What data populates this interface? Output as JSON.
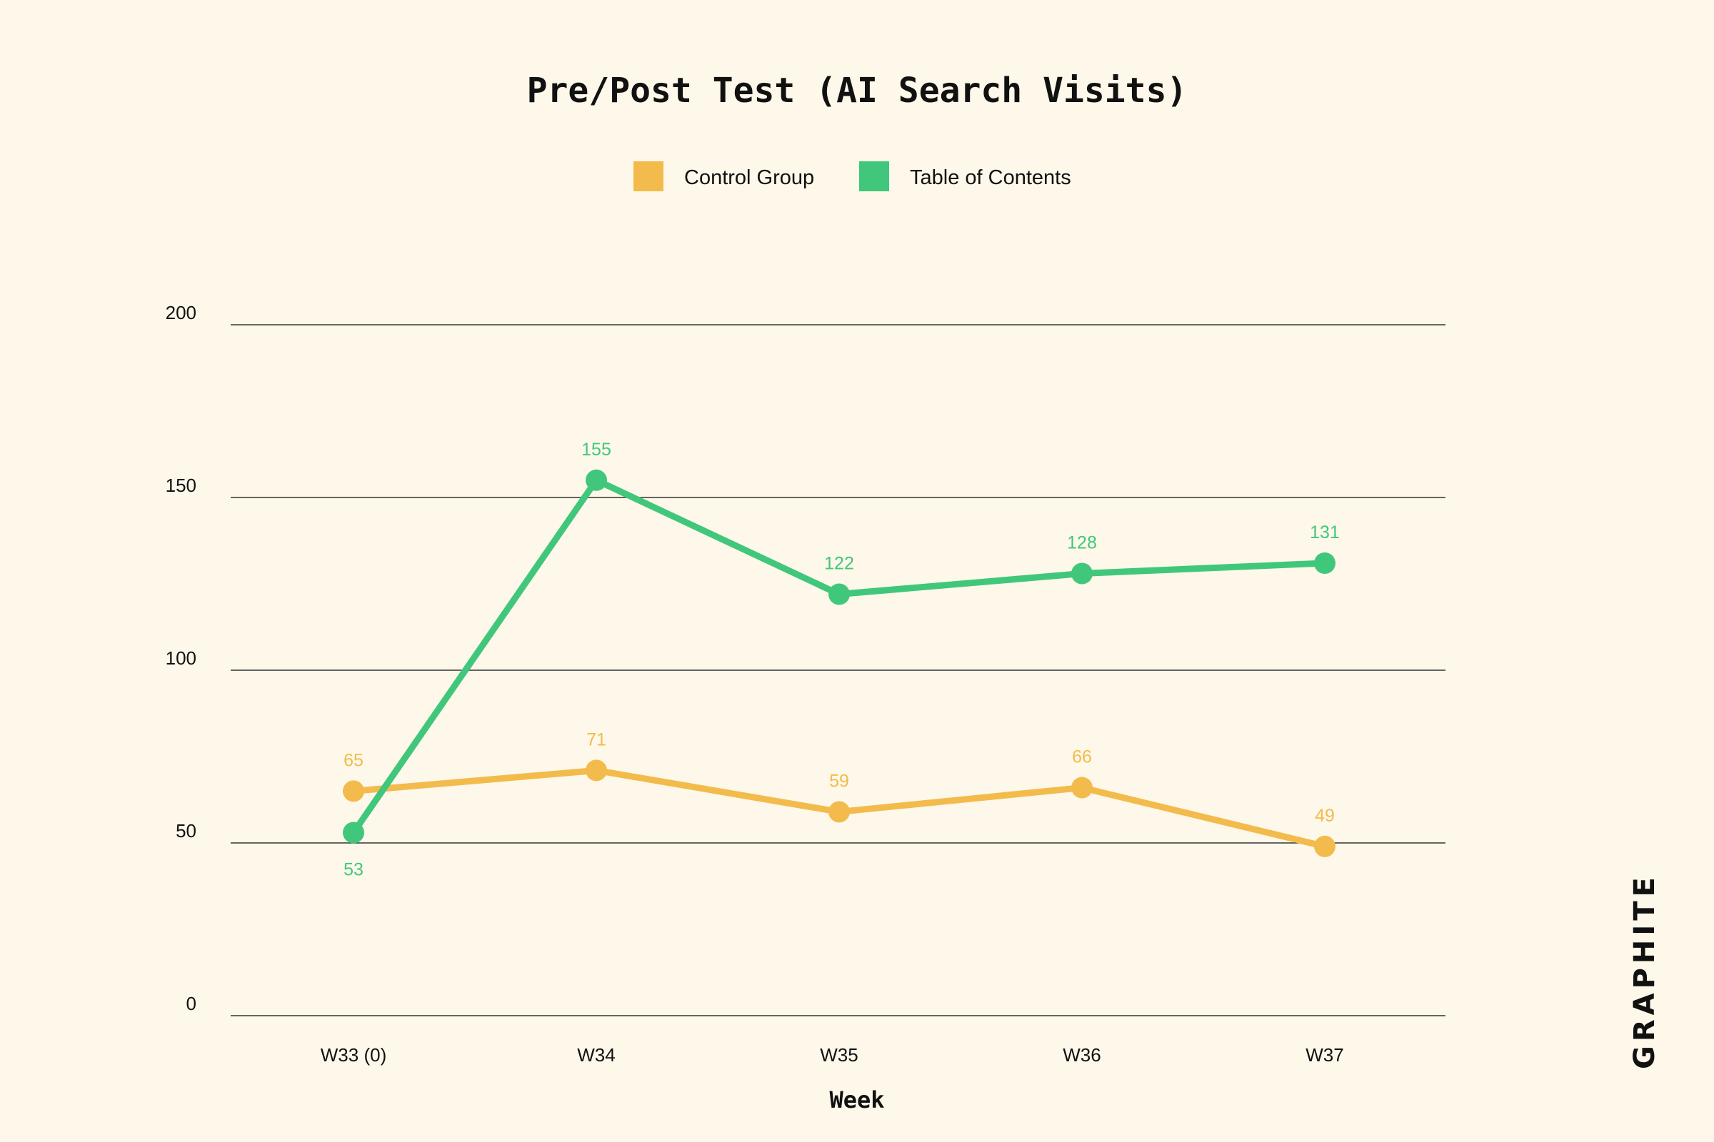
{
  "chart_data": {
    "type": "line",
    "title": "Pre/Post Test (AI Search Visits)",
    "xlabel": "Week",
    "ylabel": "",
    "categories": [
      "W33 (0)",
      "W34",
      "W35",
      "W36",
      "W37"
    ],
    "ylim": [
      0,
      200
    ],
    "yticks": [
      0,
      50,
      100,
      150,
      200
    ],
    "grid": true,
    "legend_position": "top-center",
    "series": [
      {
        "name": "Control Group",
        "values": [
          65,
          71,
          59,
          66,
          49
        ],
        "color": "#f3bb4b"
      },
      {
        "name": "Table of Contents",
        "values": [
          53,
          155,
          122,
          128,
          131
        ],
        "color": "#41c77c"
      }
    ]
  },
  "branding": {
    "logo_text": "GRAPHITE"
  }
}
